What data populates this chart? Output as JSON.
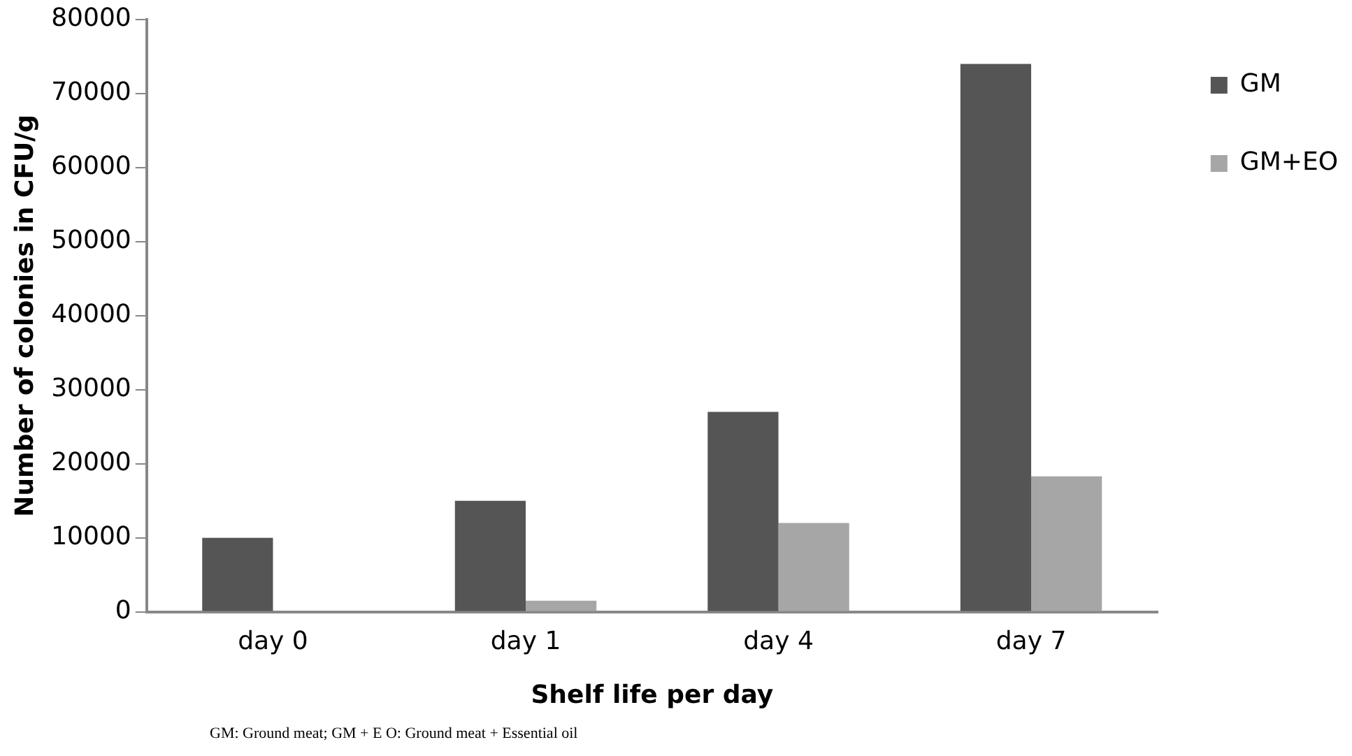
{
  "chart_data": {
    "type": "bar",
    "ylabel": "Number of colonies in CFU/g",
    "xlabel": "Shelf life per day",
    "categories": [
      "day 0",
      "day 1",
      "day 4",
      "day 7"
    ],
    "series": [
      {
        "name": "GM",
        "color": "#555555",
        "values": [
          10000,
          15000,
          27000,
          74000
        ]
      },
      {
        "name": "GM+EO",
        "color": "#a6a6a6",
        "values": [
          0,
          1500,
          12000,
          18300
        ]
      }
    ],
    "ylim": [
      0,
      80000
    ],
    "yticks": [
      0,
      10000,
      20000,
      30000,
      40000,
      50000,
      60000,
      70000,
      80000
    ],
    "grid": false,
    "legend": "top right",
    "annotations": [
      "GM: Ground meat; GM + E O: Ground meat + Essential oil"
    ]
  }
}
